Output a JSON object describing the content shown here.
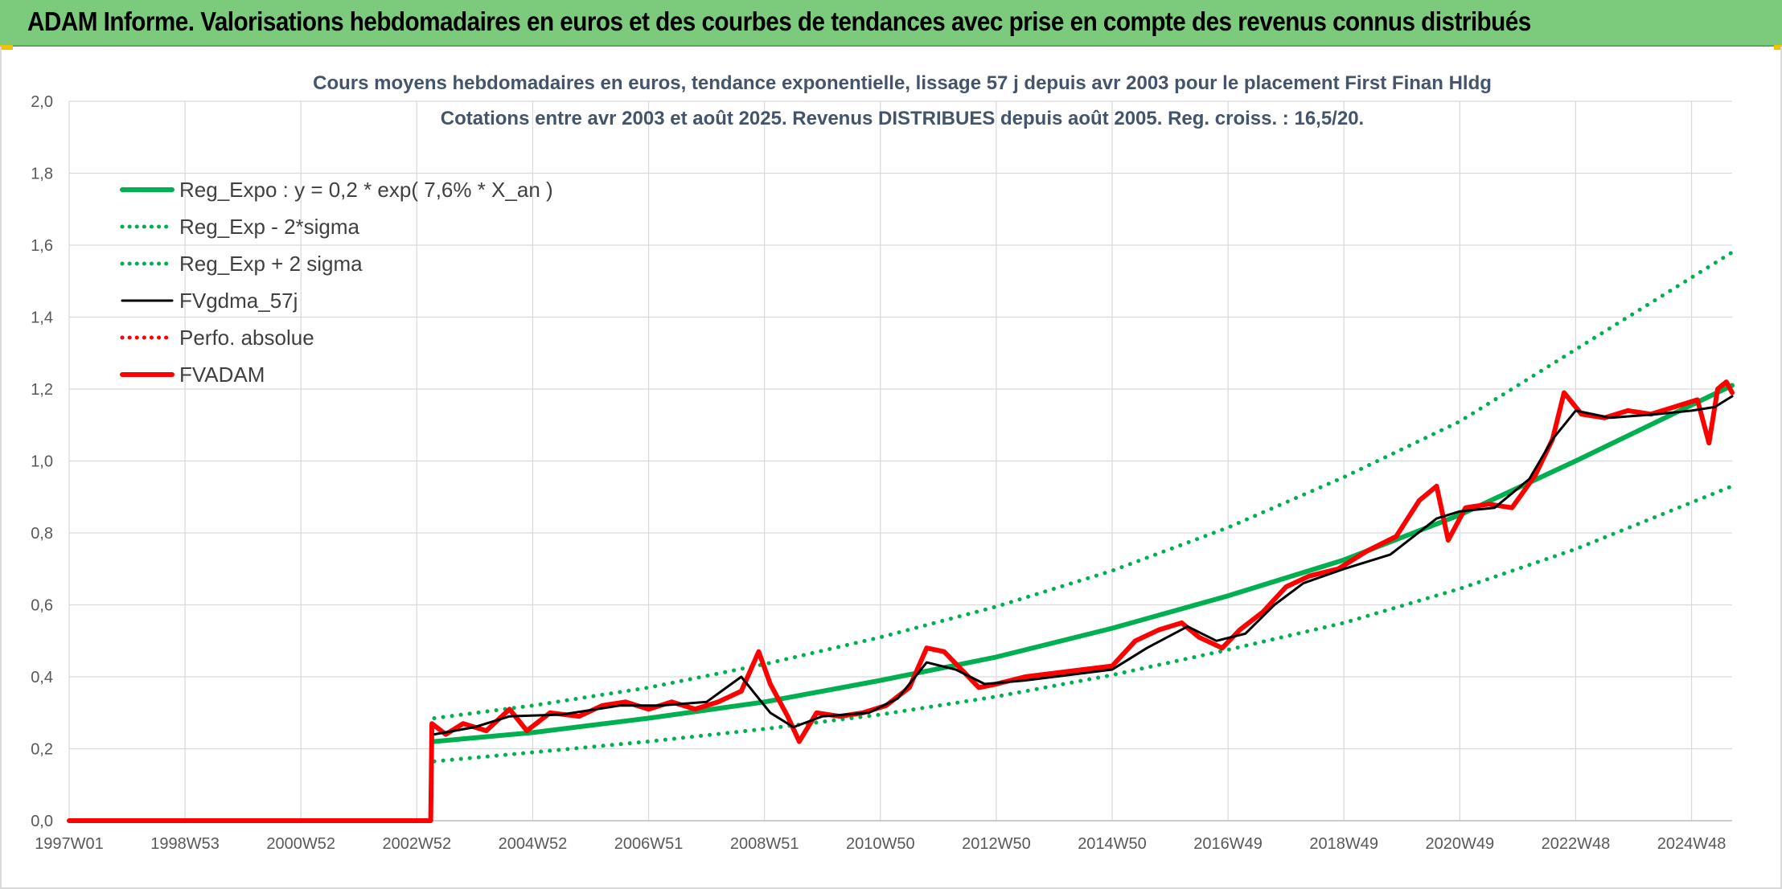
{
  "header": {
    "title": "ADAM Informe. Valorisations hebdomadaires en euros et des courbes de tendances avec prise en compte des revenus connus distribués"
  },
  "colors": {
    "banner": "#7ccb7c",
    "regression": "#00b050",
    "smoothed": "#000000",
    "fund": "#ff0000"
  },
  "chart_data": {
    "type": "line",
    "title": "Cours moyens hebdomadaires en euros, tendance exponentielle, lissage 57 j depuis avr 2003 pour le placement First Finan Hldg",
    "subtitle": "Cotations entre avr 2003 et août 2025. Revenus DISTRIBUES depuis août 2005. Reg. croiss. : 16,5/20.",
    "xlabel": "",
    "ylabel": "",
    "x_range": [
      1997.0,
      2025.7
    ],
    "ylim": [
      0,
      2.0
    ],
    "y_ticks": [
      "0,0",
      "0,2",
      "0,4",
      "0,6",
      "0,8",
      "1,0",
      "1,2",
      "1,4",
      "1,6",
      "1,8",
      "2,0"
    ],
    "x_ticks": [
      {
        "label": "1997W01",
        "t": 1997.0
      },
      {
        "label": "1998W53",
        "t": 1999.0
      },
      {
        "label": "2000W52",
        "t": 2001.0
      },
      {
        "label": "2002W52",
        "t": 2003.0
      },
      {
        "label": "2004W52",
        "t": 2005.0
      },
      {
        "label": "2006W51",
        "t": 2007.0
      },
      {
        "label": "2008W51",
        "t": 2009.0
      },
      {
        "label": "2010W50",
        "t": 2011.0
      },
      {
        "label": "2012W50",
        "t": 2013.0
      },
      {
        "label": "2014W50",
        "t": 2015.0
      },
      {
        "label": "2016W49",
        "t": 2017.0
      },
      {
        "label": "2018W49",
        "t": 2019.0
      },
      {
        "label": "2020W49",
        "t": 2021.0
      },
      {
        "label": "2022W48",
        "t": 2023.0
      },
      {
        "label": "2024W48",
        "t": 2025.0
      }
    ],
    "grid": true,
    "legend_position": "top-left",
    "series": [
      {
        "name": "Reg_Expo : y = 0,2 * exp( 7,6% *  X_an )",
        "style": "solid-thick",
        "color": "#00b050",
        "points": [
          [
            2003.3,
            0.22
          ],
          [
            2005.0,
            0.245
          ],
          [
            2007.0,
            0.285
          ],
          [
            2009.0,
            0.33
          ],
          [
            2011.0,
            0.39
          ],
          [
            2013.0,
            0.455
          ],
          [
            2015.0,
            0.535
          ],
          [
            2017.0,
            0.625
          ],
          [
            2019.0,
            0.725
          ],
          [
            2021.0,
            0.85
          ],
          [
            2023.0,
            1.0
          ],
          [
            2025.7,
            1.21
          ]
        ]
      },
      {
        "name": "Reg_Exp - 2*sigma",
        "style": "dotted",
        "color": "#00b050",
        "points": [
          [
            2003.3,
            0.165
          ],
          [
            2005.0,
            0.19
          ],
          [
            2007.0,
            0.22
          ],
          [
            2009.0,
            0.255
          ],
          [
            2011.0,
            0.295
          ],
          [
            2013.0,
            0.345
          ],
          [
            2015.0,
            0.405
          ],
          [
            2017.0,
            0.475
          ],
          [
            2019.0,
            0.55
          ],
          [
            2021.0,
            0.645
          ],
          [
            2023.0,
            0.755
          ],
          [
            2025.7,
            0.93
          ]
        ]
      },
      {
        "name": "Reg_Exp + 2 sigma",
        "style": "dotted",
        "color": "#00b050",
        "points": [
          [
            2003.3,
            0.285
          ],
          [
            2005.0,
            0.32
          ],
          [
            2007.0,
            0.37
          ],
          [
            2009.0,
            0.435
          ],
          [
            2011.0,
            0.51
          ],
          [
            2013.0,
            0.595
          ],
          [
            2015.0,
            0.695
          ],
          [
            2017.0,
            0.815
          ],
          [
            2019.0,
            0.955
          ],
          [
            2021.0,
            1.11
          ],
          [
            2023.0,
            1.31
          ],
          [
            2025.7,
            1.58
          ]
        ]
      },
      {
        "name": "FVgdma_57j",
        "style": "solid",
        "color": "#000000",
        "points": [
          [
            2003.3,
            0.24
          ],
          [
            2004.0,
            0.26
          ],
          [
            2004.6,
            0.29
          ],
          [
            2005.5,
            0.295
          ],
          [
            2006.5,
            0.32
          ],
          [
            2007.2,
            0.32
          ],
          [
            2008.0,
            0.33
          ],
          [
            2008.6,
            0.4
          ],
          [
            2009.1,
            0.3
          ],
          [
            2009.5,
            0.26
          ],
          [
            2010.0,
            0.29
          ],
          [
            2010.8,
            0.3
          ],
          [
            2011.3,
            0.34
          ],
          [
            2011.8,
            0.44
          ],
          [
            2012.3,
            0.42
          ],
          [
            2012.8,
            0.38
          ],
          [
            2013.5,
            0.39
          ],
          [
            2014.5,
            0.41
          ],
          [
            2015.0,
            0.42
          ],
          [
            2015.6,
            0.48
          ],
          [
            2016.3,
            0.54
          ],
          [
            2016.8,
            0.5
          ],
          [
            2017.3,
            0.52
          ],
          [
            2017.8,
            0.6
          ],
          [
            2018.3,
            0.66
          ],
          [
            2019.0,
            0.7
          ],
          [
            2019.8,
            0.74
          ],
          [
            2020.6,
            0.84
          ],
          [
            2021.0,
            0.86
          ],
          [
            2021.6,
            0.87
          ],
          [
            2022.2,
            0.95
          ],
          [
            2022.6,
            1.06
          ],
          [
            2023.0,
            1.14
          ],
          [
            2023.6,
            1.12
          ],
          [
            2024.4,
            1.13
          ],
          [
            2025.0,
            1.14
          ],
          [
            2025.4,
            1.15
          ],
          [
            2025.7,
            1.18
          ]
        ]
      },
      {
        "name": "Perfo. absolue",
        "style": "dotted",
        "color": "#ff0000",
        "points": []
      },
      {
        "name": "FVADAM",
        "style": "solid-thick",
        "color": "#ff0000",
        "points": [
          [
            1997.0,
            0.0
          ],
          [
            2003.24,
            0.0
          ],
          [
            2003.26,
            0.27
          ],
          [
            2003.5,
            0.24
          ],
          [
            2003.8,
            0.27
          ],
          [
            2004.2,
            0.25
          ],
          [
            2004.6,
            0.31
          ],
          [
            2004.9,
            0.25
          ],
          [
            2005.3,
            0.3
          ],
          [
            2005.8,
            0.29
          ],
          [
            2006.2,
            0.32
          ],
          [
            2006.6,
            0.33
          ],
          [
            2007.0,
            0.31
          ],
          [
            2007.4,
            0.33
          ],
          [
            2007.8,
            0.31
          ],
          [
            2008.2,
            0.33
          ],
          [
            2008.6,
            0.36
          ],
          [
            2008.9,
            0.47
          ],
          [
            2009.1,
            0.38
          ],
          [
            2009.4,
            0.29
          ],
          [
            2009.6,
            0.22
          ],
          [
            2009.9,
            0.3
          ],
          [
            2010.3,
            0.29
          ],
          [
            2010.7,
            0.3
          ],
          [
            2011.1,
            0.32
          ],
          [
            2011.5,
            0.37
          ],
          [
            2011.8,
            0.48
          ],
          [
            2012.1,
            0.47
          ],
          [
            2012.4,
            0.42
          ],
          [
            2012.7,
            0.37
          ],
          [
            2013.0,
            0.38
          ],
          [
            2013.5,
            0.4
          ],
          [
            2014.0,
            0.41
          ],
          [
            2014.5,
            0.42
          ],
          [
            2015.0,
            0.43
          ],
          [
            2015.4,
            0.5
          ],
          [
            2015.8,
            0.53
          ],
          [
            2016.2,
            0.55
          ],
          [
            2016.5,
            0.51
          ],
          [
            2016.9,
            0.48
          ],
          [
            2017.2,
            0.53
          ],
          [
            2017.6,
            0.58
          ],
          [
            2018.0,
            0.65
          ],
          [
            2018.4,
            0.68
          ],
          [
            2018.9,
            0.7
          ],
          [
            2019.4,
            0.75
          ],
          [
            2019.9,
            0.79
          ],
          [
            2020.3,
            0.89
          ],
          [
            2020.6,
            0.93
          ],
          [
            2020.8,
            0.78
          ],
          [
            2021.1,
            0.87
          ],
          [
            2021.5,
            0.88
          ],
          [
            2021.9,
            0.87
          ],
          [
            2022.3,
            0.96
          ],
          [
            2022.6,
            1.06
          ],
          [
            2022.8,
            1.19
          ],
          [
            2023.1,
            1.13
          ],
          [
            2023.5,
            1.12
          ],
          [
            2023.9,
            1.14
          ],
          [
            2024.3,
            1.13
          ],
          [
            2024.7,
            1.15
          ],
          [
            2025.1,
            1.17
          ],
          [
            2025.3,
            1.05
          ],
          [
            2025.45,
            1.2
          ],
          [
            2025.6,
            1.22
          ],
          [
            2025.7,
            1.19
          ]
        ]
      }
    ]
  }
}
